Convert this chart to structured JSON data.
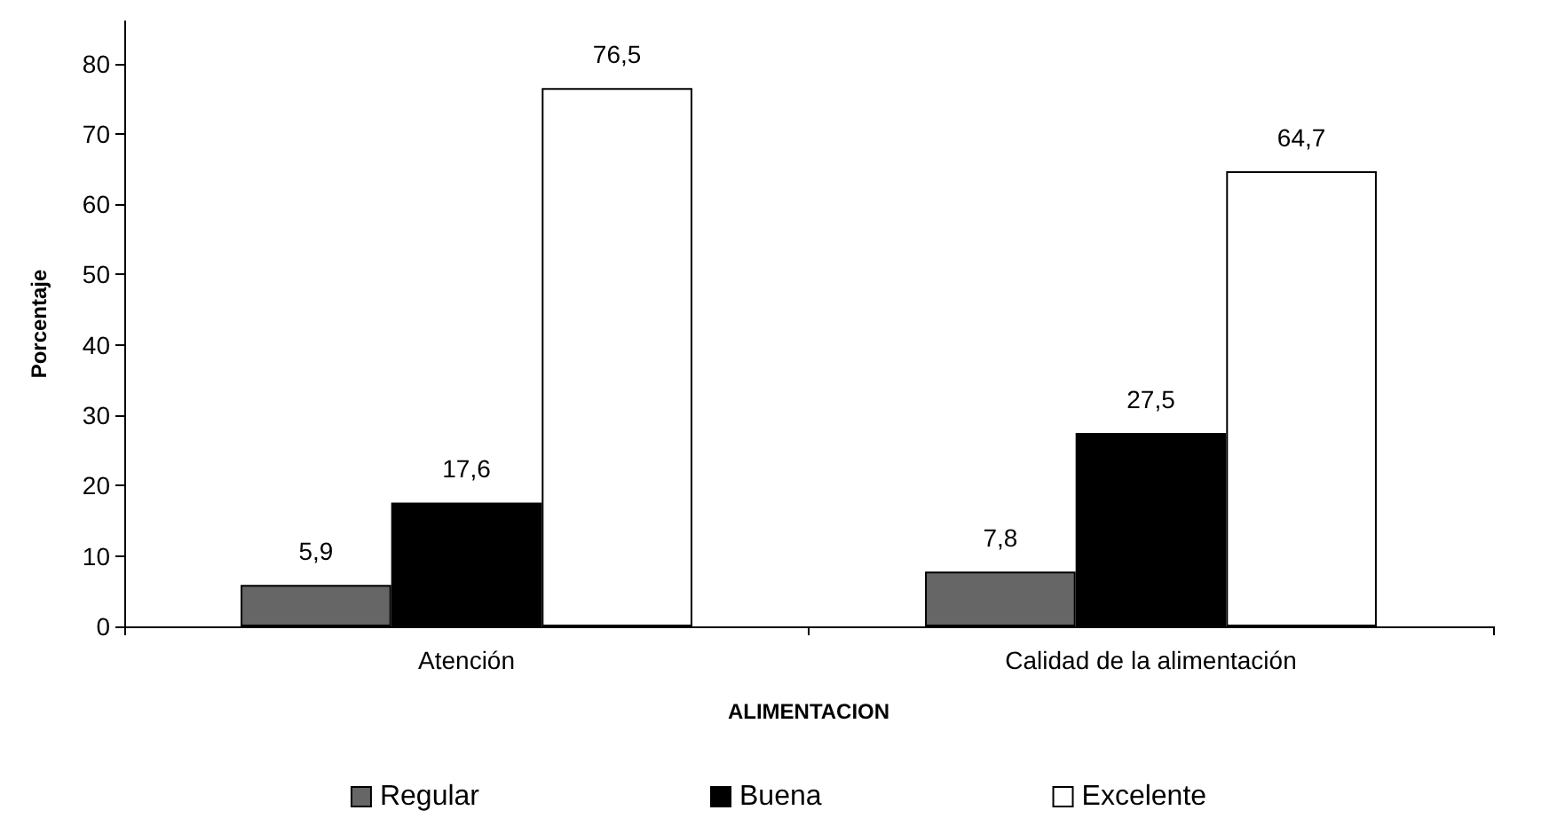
{
  "chart_data": {
    "type": "bar",
    "xlabel": "ALIMENTACION",
    "ylabel": "Porcentaje",
    "categories": [
      "Atención",
      "Calidad de la alimentación"
    ],
    "series": [
      {
        "name": "Regular",
        "color": "#666666",
        "values": [
          5.9,
          7.8
        ],
        "value_labels": [
          "5,9",
          "7,8"
        ]
      },
      {
        "name": "Buena",
        "color": "#000000",
        "values": [
          17.6,
          27.5
        ],
        "value_labels": [
          "17,6",
          "27,5"
        ]
      },
      {
        "name": "Excelente",
        "color": "#ffffff",
        "values": [
          76.5,
          64.7
        ],
        "value_labels": [
          "76,5",
          "64,7"
        ]
      }
    ],
    "ylim": [
      0,
      86
    ],
    "yticks": [
      0,
      10,
      20,
      30,
      40,
      50,
      60,
      70,
      80
    ],
    "grid": false,
    "legend": "bottom"
  }
}
